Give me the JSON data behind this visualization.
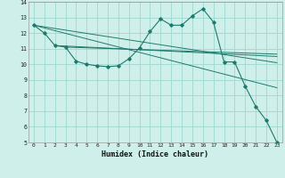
{
  "xlabel": "Humidex (Indice chaleur)",
  "bg_color": "#cff0ea",
  "grid_color": "#9ed8d0",
  "line_color": "#1e7a6d",
  "xlim": [
    -0.5,
    23.5
  ],
  "ylim": [
    5,
    14
  ],
  "xticks": [
    0,
    1,
    2,
    3,
    4,
    5,
    6,
    7,
    8,
    9,
    10,
    11,
    12,
    13,
    14,
    15,
    16,
    17,
    18,
    19,
    20,
    21,
    22,
    23
  ],
  "yticks": [
    5,
    6,
    7,
    8,
    9,
    10,
    11,
    12,
    13,
    14
  ],
  "series": [
    {
      "x": [
        0,
        1,
        2,
        3,
        4,
        5,
        6,
        7,
        8,
        9,
        10,
        11,
        12,
        13,
        14,
        15,
        16,
        17,
        18,
        19,
        20,
        21,
        22,
        23
      ],
      "y": [
        12.5,
        12.0,
        11.2,
        11.1,
        10.2,
        10.0,
        9.9,
        9.85,
        9.9,
        10.35,
        11.05,
        12.1,
        12.9,
        12.5,
        12.5,
        13.1,
        13.55,
        12.7,
        10.15,
        10.15,
        8.6,
        7.3,
        6.4,
        5.0
      ],
      "marker": true
    },
    {
      "x": [
        0,
        23
      ],
      "y": [
        12.5,
        8.5
      ],
      "marker": false
    },
    {
      "x": [
        0,
        23
      ],
      "y": [
        12.5,
        10.1
      ],
      "marker": false
    },
    {
      "x": [
        2,
        23
      ],
      "y": [
        11.2,
        10.5
      ],
      "marker": false
    },
    {
      "x": [
        3,
        23
      ],
      "y": [
        11.1,
        10.65
      ],
      "marker": false
    }
  ]
}
